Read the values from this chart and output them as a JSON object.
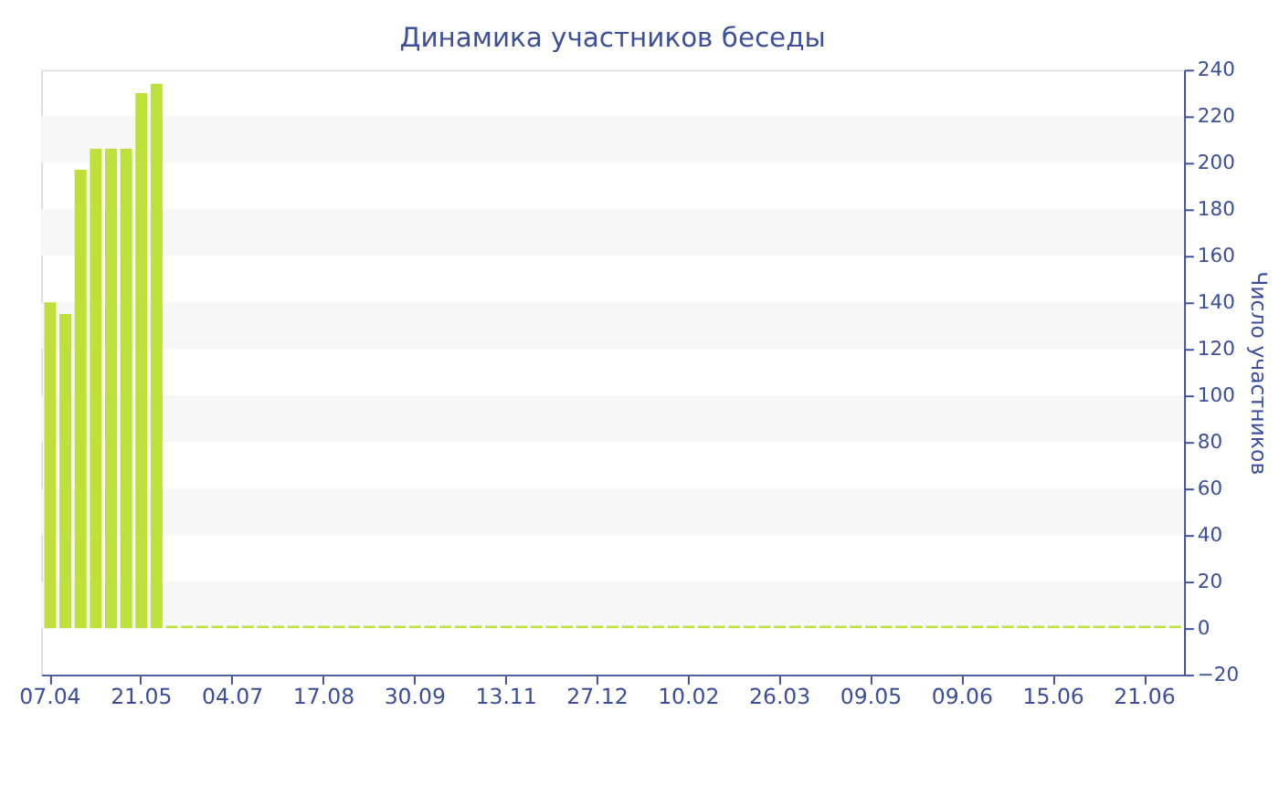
{
  "chart_data": {
    "type": "bar",
    "title": "Динамика участников беседы",
    "ylabel": "Число участников",
    "categories": [
      "07.04",
      null,
      null,
      null,
      null,
      null,
      "21.05",
      null,
      null,
      null,
      null,
      null,
      "04.07",
      null,
      null,
      null,
      null,
      null,
      "17.08",
      null,
      null,
      null,
      null,
      null,
      "30.09",
      null,
      null,
      null,
      null,
      null,
      "13.11",
      null,
      null,
      null,
      null,
      null,
      "27.12",
      null,
      null,
      null,
      null,
      null,
      "10.02",
      null,
      null,
      null,
      null,
      null,
      "26.03",
      null,
      null,
      null,
      null,
      null,
      "09.05",
      null,
      null,
      null,
      null,
      null,
      "09.06",
      null,
      null,
      null,
      null,
      null,
      "15.06",
      null,
      null,
      null,
      null,
      null,
      "21.06",
      null,
      null
    ],
    "series": [
      {
        "color": "#bde13a",
        "values": [
          140,
          135,
          197,
          206,
          206,
          206,
          230,
          234,
          1,
          1,
          1,
          1,
          1,
          1,
          1,
          1,
          1,
          1,
          1,
          1,
          1,
          1,
          1,
          1,
          1,
          1,
          1,
          1,
          1,
          1,
          1,
          1,
          1,
          1,
          1,
          1,
          1,
          1,
          1,
          1,
          1,
          1,
          1,
          1,
          1,
          1,
          1,
          1,
          1,
          1,
          1,
          1,
          1,
          1,
          1,
          1,
          1,
          1,
          1,
          1,
          1,
          1,
          1,
          1,
          1,
          1,
          1,
          1,
          1,
          1,
          1,
          1,
          1,
          1,
          1
        ]
      }
    ],
    "ylim": [
      -20,
      240
    ],
    "yticks": [
      -20,
      0,
      20,
      40,
      60,
      80,
      100,
      120,
      140,
      160,
      180,
      200,
      220,
      240
    ],
    "bands": [
      {
        "axis": "y",
        "from": 0,
        "to": 20,
        "color": "#f7f7f7"
      },
      {
        "axis": "y",
        "from": 40,
        "to": 60,
        "color": "#f7f7f7"
      },
      {
        "axis": "y",
        "from": 80,
        "to": 100,
        "color": "#f7f7f7"
      },
      {
        "axis": "y",
        "from": 120,
        "to": 140,
        "color": "#f7f7f7"
      },
      {
        "axis": "y",
        "from": 160,
        "to": 180,
        "color": "#f7f7f7"
      },
      {
        "axis": "y",
        "from": 200,
        "to": 220,
        "color": "#f7f7f7"
      }
    ],
    "legend": false
  }
}
